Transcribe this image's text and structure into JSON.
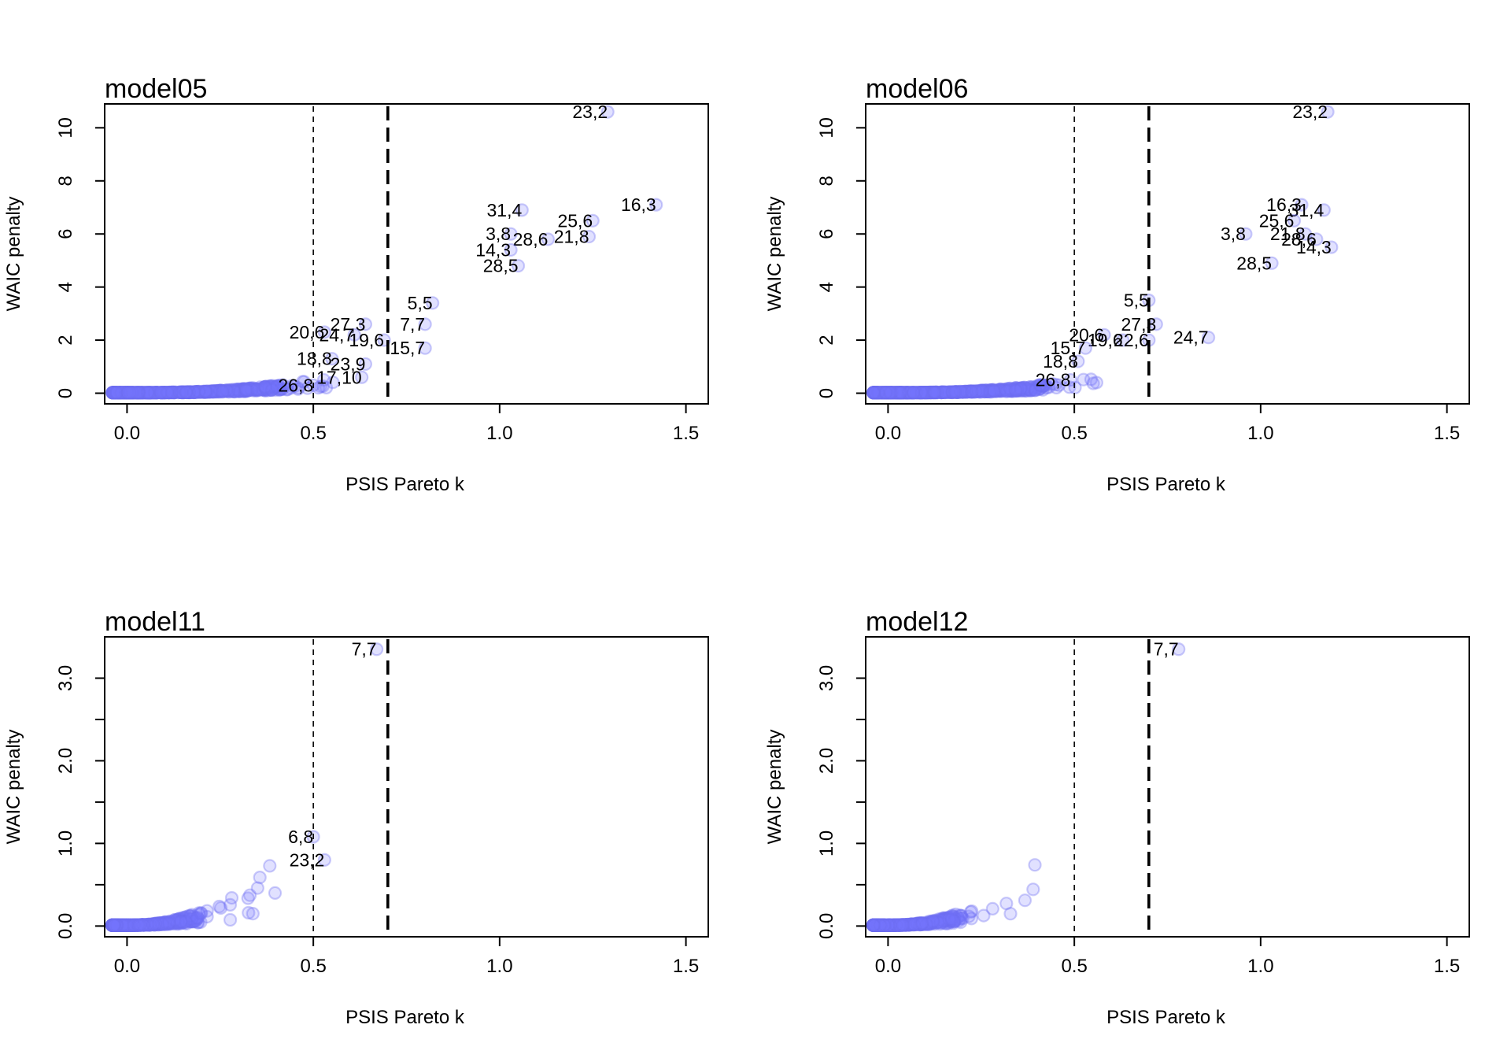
{
  "colors": {
    "points": "#7878ff",
    "lines": "#000000"
  },
  "chart_data": [
    {
      "type": "scatter",
      "title": "model05",
      "xlabel": "PSIS Pareto k",
      "ylabel": "WAIC penalty",
      "xlim": [
        -0.06,
        1.56
      ],
      "ylim": [
        -0.4,
        10.9
      ],
      "xticks": [
        0.0,
        0.5,
        1.0,
        1.5
      ],
      "xtick_labels": [
        "0.0",
        "0.5",
        "1.0",
        "1.5"
      ],
      "yticks": [
        0,
        2,
        4,
        6,
        8,
        10
      ],
      "ytick_labels": [
        "0",
        "2",
        "4",
        "6",
        "8",
        "10"
      ],
      "vlines": [
        {
          "x": 0.5,
          "style": "thin-dashed"
        },
        {
          "x": 0.7,
          "style": "thick-dashed"
        }
      ],
      "labeled_points": [
        {
          "label": "23,2",
          "x": 1.29,
          "y": 10.6
        },
        {
          "label": "16,3",
          "x": 1.42,
          "y": 7.1
        },
        {
          "label": "31,4",
          "x": 1.06,
          "y": 6.9
        },
        {
          "label": "25,6",
          "x": 1.25,
          "y": 6.5
        },
        {
          "label": "21,8",
          "x": 1.24,
          "y": 5.9
        },
        {
          "label": "3,8",
          "x": 1.03,
          "y": 6.0
        },
        {
          "label": "28,6",
          "x": 1.13,
          "y": 5.8
        },
        {
          "label": "14,3",
          "x": 1.03,
          "y": 5.4
        },
        {
          "label": "28,5",
          "x": 1.05,
          "y": 4.8
        },
        {
          "label": "5,5",
          "x": 0.82,
          "y": 3.4
        },
        {
          "label": "7,7",
          "x": 0.8,
          "y": 2.6
        },
        {
          "label": "27,3",
          "x": 0.64,
          "y": 2.6
        },
        {
          "label": "20,6",
          "x": 0.53,
          "y": 2.3
        },
        {
          "label": "24,7",
          "x": 0.61,
          "y": 2.2
        },
        {
          "label": "19,6",
          "x": 0.69,
          "y": 2.0
        },
        {
          "label": "15,7",
          "x": 0.8,
          "y": 1.7
        },
        {
          "label": "18,8",
          "x": 0.55,
          "y": 1.3
        },
        {
          "label": "23,9",
          "x": 0.64,
          "y": 1.1
        },
        {
          "label": "17,10",
          "x": 0.63,
          "y": 0.6
        },
        {
          "label": "26,8",
          "x": 0.5,
          "y": 0.3
        }
      ]
    },
    {
      "type": "scatter",
      "title": "model06",
      "xlabel": "PSIS Pareto k",
      "ylabel": "WAIC penalty",
      "xlim": [
        -0.06,
        1.56
      ],
      "ylim": [
        -0.4,
        10.9
      ],
      "xticks": [
        0.0,
        0.5,
        1.0,
        1.5
      ],
      "xtick_labels": [
        "0.0",
        "0.5",
        "1.0",
        "1.5"
      ],
      "yticks": [
        0,
        2,
        4,
        6,
        8,
        10
      ],
      "ytick_labels": [
        "0",
        "2",
        "4",
        "6",
        "8",
        "10"
      ],
      "vlines": [
        {
          "x": 0.5,
          "style": "thin-dashed"
        },
        {
          "x": 0.7,
          "style": "thick-dashed"
        }
      ],
      "labeled_points": [
        {
          "label": "23,2",
          "x": 1.18,
          "y": 10.6
        },
        {
          "label": "16,3",
          "x": 1.11,
          "y": 7.1
        },
        {
          "label": "31,4",
          "x": 1.17,
          "y": 6.9
        },
        {
          "label": "25,6",
          "x": 1.09,
          "y": 6.5
        },
        {
          "label": "21,8",
          "x": 1.12,
          "y": 6.0
        },
        {
          "label": "3,8",
          "x": 0.96,
          "y": 6.0
        },
        {
          "label": "28,6",
          "x": 1.15,
          "y": 5.8
        },
        {
          "label": "14,3",
          "x": 1.19,
          "y": 5.5
        },
        {
          "label": "28,5",
          "x": 1.03,
          "y": 4.9
        },
        {
          "label": "5,5",
          "x": 0.7,
          "y": 3.5
        },
        {
          "label": "27,3",
          "x": 0.72,
          "y": 2.6
        },
        {
          "label": "24,7",
          "x": 0.86,
          "y": 2.1
        },
        {
          "label": "20,6",
          "x": 0.58,
          "y": 2.2
        },
        {
          "label": "19,6",
          "x": 0.63,
          "y": 2.0
        },
        {
          "label": "22,6",
          "x": 0.7,
          "y": 2.0
        },
        {
          "label": "15,7",
          "x": 0.53,
          "y": 1.7
        },
        {
          "label": "18,8",
          "x": 0.51,
          "y": 1.2
        },
        {
          "label": "26,8",
          "x": 0.49,
          "y": 0.5
        }
      ]
    },
    {
      "type": "scatter",
      "title": "model11",
      "xlabel": "PSIS Pareto k",
      "ylabel": "WAIC penalty",
      "xlim": [
        -0.06,
        1.56
      ],
      "ylim": [
        -0.13,
        3.5
      ],
      "xticks": [
        0.0,
        0.5,
        1.0,
        1.5
      ],
      "xtick_labels": [
        "0.0",
        "0.5",
        "1.0",
        "1.5"
      ],
      "yticks": [
        0.0,
        0.5,
        1.0,
        1.5,
        2.0,
        2.5,
        3.0
      ],
      "ytick_labels": [
        "0.0",
        "",
        "1.0",
        "",
        "2.0",
        "",
        "3.0"
      ],
      "vlines": [
        {
          "x": 0.5,
          "style": "thin-dashed"
        },
        {
          "x": 0.7,
          "style": "thick-dashed"
        }
      ],
      "labeled_points": [
        {
          "label": "7,7",
          "x": 0.67,
          "y": 3.35
        },
        {
          "label": "6,8",
          "x": 0.5,
          "y": 1.08
        },
        {
          "label": "23,2",
          "x": 0.53,
          "y": 0.8
        }
      ]
    },
    {
      "type": "scatter",
      "title": "model12",
      "xlabel": "PSIS Pareto k",
      "ylabel": "WAIC penalty",
      "xlim": [
        -0.06,
        1.56
      ],
      "ylim": [
        -0.13,
        3.5
      ],
      "xticks": [
        0.0,
        0.5,
        1.0,
        1.5
      ],
      "xtick_labels": [
        "0.0",
        "0.5",
        "1.0",
        "1.5"
      ],
      "yticks": [
        0.0,
        0.5,
        1.0,
        1.5,
        2.0,
        2.5,
        3.0
      ],
      "ytick_labels": [
        "0.0",
        "",
        "1.0",
        "",
        "2.0",
        "",
        "3.0"
      ],
      "vlines": [
        {
          "x": 0.5,
          "style": "thin-dashed"
        },
        {
          "x": 0.7,
          "style": "thick-dashed"
        }
      ],
      "labeled_points": [
        {
          "label": "7,7",
          "x": 0.78,
          "y": 3.35
        }
      ]
    }
  ]
}
